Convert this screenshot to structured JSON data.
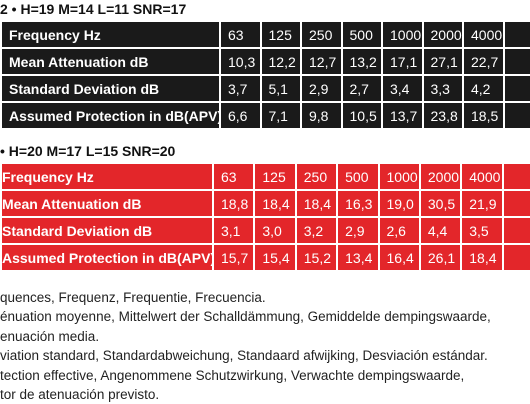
{
  "tables": [
    {
      "heading": "2 • H=19 M=14 L=11 SNR=17",
      "rows": [
        [
          "Frequency Hz",
          "63",
          "125",
          "250",
          "500",
          "1000",
          "2000",
          "4000"
        ],
        [
          "Mean Attenuation dB",
          "10,3",
          "12,2",
          "12,7",
          "13,2",
          "17,1",
          "27,1",
          "22,7"
        ],
        [
          "Standard Deviation dB",
          "3,7",
          "5,1",
          "2,9",
          "2,7",
          "3,4",
          "3,3",
          "4,2"
        ],
        [
          "Assumed Protection in dB(APV)",
          "6,6",
          "7,1",
          "9,8",
          "10,5",
          "13,7",
          "23,8",
          "18,5"
        ]
      ]
    },
    {
      "heading": "• H=20 M=17 L=15 SNR=20",
      "rows": [
        [
          "Frequency Hz",
          "63",
          "125",
          "250",
          "500",
          "1000",
          "2000",
          "4000"
        ],
        [
          "Mean Attenuation dB",
          "18,8",
          "18,4",
          "18,4",
          "16,3",
          "19,0",
          "30,5",
          "21,9"
        ],
        [
          "Standard Deviation dB",
          "3,1",
          "3,0",
          "3,2",
          "2,9",
          "2,6",
          "4,4",
          "3,5"
        ],
        [
          "Assumed Protection in dB(APV)",
          "15,7",
          "15,4",
          "15,2",
          "13,4",
          "16,4",
          "26,1",
          "18,4"
        ]
      ]
    }
  ],
  "notes": [
    "quences, Frequenz, Frequentie, Frecuencia.",
    "énuation moyenne, Mittelwert der Schalldämmung, Gemiddelde dempingswaarde,",
    "enuación media.",
    "viation standard, Standardabweichung, Standaard afwijking, Desviación estándar.",
    "tection effective,  Angenommene Schutzwirkung, Verwachte dempingswaarde,",
    "tor de atenuación previsto."
  ]
}
